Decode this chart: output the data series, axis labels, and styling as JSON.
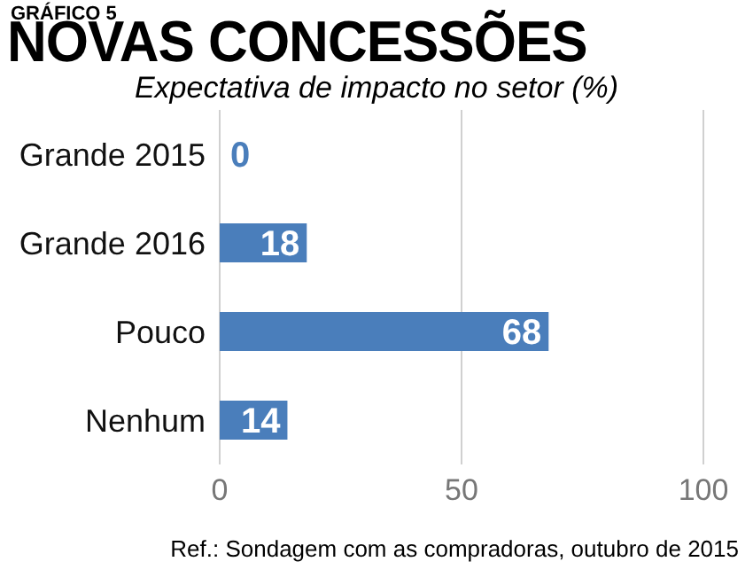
{
  "chart_data": {
    "type": "bar",
    "orientation": "horizontal",
    "title": "NOVAS CONCESSÕES",
    "subtitle": "Expectativa de impacto no setor (%)",
    "annotations": [
      "GRÁFICO 5",
      "Ref.: Sondagem com as compradoras, outubro de 2015"
    ],
    "categories": [
      "Grande 2015",
      "Grande 2016",
      "Pouco",
      "Nenhum"
    ],
    "values": [
      0,
      18,
      68,
      14
    ],
    "color": "#4a7ebb",
    "xlim": [
      0,
      100
    ],
    "xticks": [
      0,
      50,
      100
    ],
    "grid": "x",
    "data_labels": true
  }
}
